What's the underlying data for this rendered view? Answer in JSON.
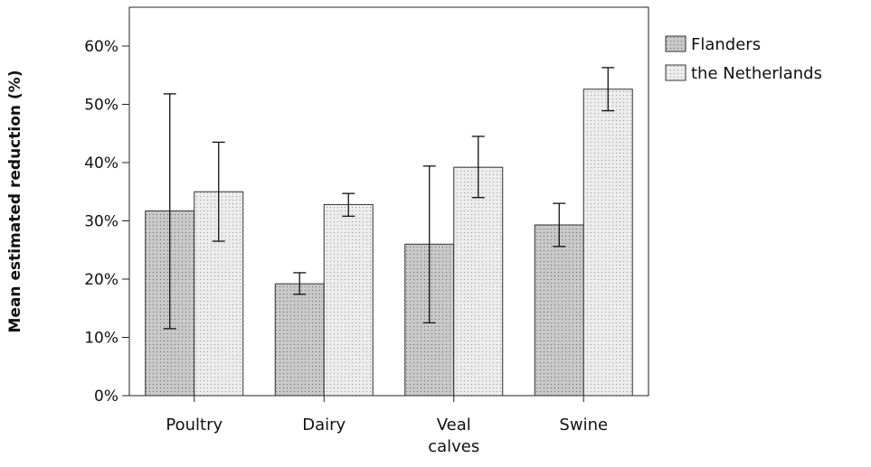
{
  "chart_data": {
    "type": "bar",
    "title": "",
    "xlabel": "",
    "ylabel": "Mean estimated reduction (%)",
    "ylim": [
      0,
      0.65
    ],
    "yticks": [
      0,
      0.1,
      0.2,
      0.3,
      0.4,
      0.5,
      0.6
    ],
    "ytick_labels": [
      "0%",
      "10%",
      "20%",
      "30%",
      "40%",
      "50%",
      "60%"
    ],
    "categories": [
      [
        "Poultry"
      ],
      [
        "Dairy"
      ],
      [
        "Veal",
        "calves"
      ],
      [
        "Swine"
      ]
    ],
    "grid": false,
    "legend_position": "right",
    "series": [
      {
        "name": "Flanders",
        "values": [
          0.317,
          0.192,
          0.26,
          0.293
        ],
        "err_low": [
          0.115,
          0.174,
          0.125,
          0.256
        ],
        "err_high": [
          0.518,
          0.211,
          0.394,
          0.33
        ],
        "fill": "#c8c8c8",
        "dot": "#6a6a6a"
      },
      {
        "name": "the Netherlands",
        "values": [
          0.35,
          0.328,
          0.392,
          0.526
        ],
        "err_low": [
          0.265,
          0.308,
          0.34,
          0.489
        ],
        "err_high": [
          0.435,
          0.347,
          0.445,
          0.563
        ],
        "fill": "#ececec",
        "dot": "#9a9a9a"
      }
    ]
  }
}
